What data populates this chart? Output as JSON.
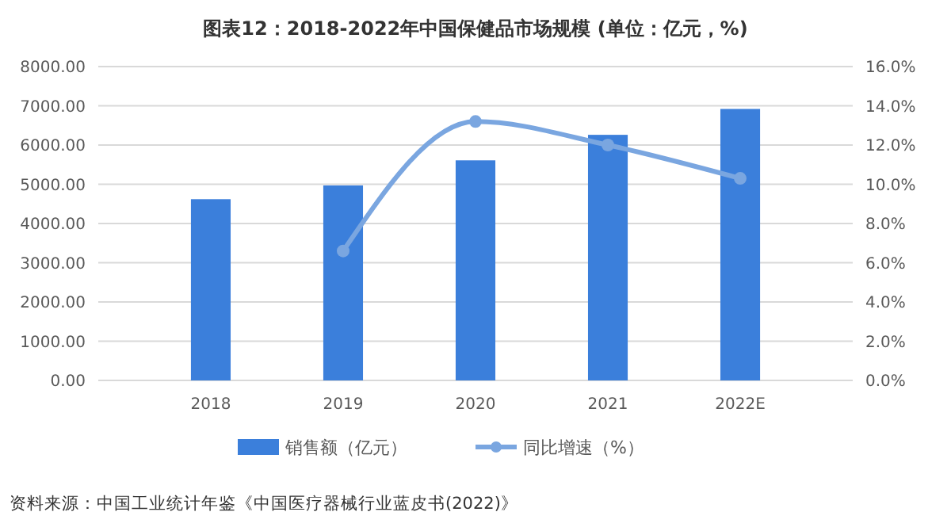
{
  "chart_data": {
    "type": "bar",
    "title": "图表12：2018-2022年中国保健品市场规模 (单位：亿元，%)",
    "categories": [
      "2018",
      "2019",
      "2020",
      "2021",
      "2022E"
    ],
    "series": [
      {
        "name": "销售额（亿元）",
        "color": "#3b7fdb",
        "values": [
          4620,
          4970,
          5610,
          6260,
          6920
        ]
      },
      {
        "name": "同比增速（%）",
        "color": "#7aa6e0",
        "type": "line",
        "axis": "y2",
        "marker": "circle",
        "values": [
          null,
          6.6,
          13.2,
          12.0,
          10.3
        ]
      }
    ],
    "ylim": [
      0,
      8000
    ],
    "yticks": [
      {
        "value": 0,
        "label": "0.00"
      },
      {
        "value": 1000,
        "label": "1000.00"
      },
      {
        "value": 2000,
        "label": "2000.00"
      },
      {
        "value": 3000,
        "label": "3000.00"
      },
      {
        "value": 4000,
        "label": "4000.00"
      },
      {
        "value": 5000,
        "label": "5000.00"
      },
      {
        "value": 6000,
        "label": "6000.00"
      },
      {
        "value": 7000,
        "label": "7000.00"
      },
      {
        "value": 8000,
        "label": "8000.00"
      }
    ],
    "y2lim": [
      0,
      16
    ],
    "y2ticks": [
      {
        "value": 0,
        "label": "0.0%"
      },
      {
        "value": 2,
        "label": "2.0%"
      },
      {
        "value": 4,
        "label": "4.0%"
      },
      {
        "value": 6,
        "label": "6.0%"
      },
      {
        "value": 8,
        "label": "8.0%"
      },
      {
        "value": 10,
        "label": "10.0%"
      },
      {
        "value": 12,
        "label": "12.0%"
      },
      {
        "value": 14,
        "label": "14.0%"
      },
      {
        "value": 16,
        "label": "16.0%"
      }
    ],
    "grid": "y",
    "legend": "bottom",
    "annotations": [
      "资料来源：中国工业统计年鉴《中国医疗器械行业蓝皮书(2022)》"
    ]
  }
}
